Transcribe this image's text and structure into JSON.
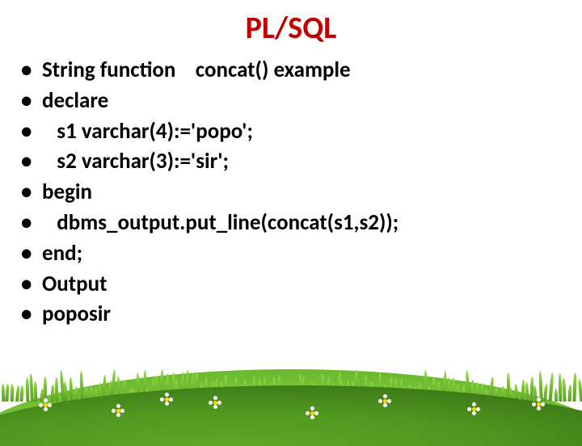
{
  "title": "PL/SQL",
  "bullets": [
    "String function    concat() example",
    "declare",
    "   s1 varchar(4):='popo';",
    "   s2 varchar(3):='sir';",
    "begin",
    "   dbms_output.put_line(concat(s1,s2));",
    "end;",
    "Output",
    "poposir"
  ],
  "colors": {
    "title": "#c00000",
    "text": "#000000",
    "grass_light": "#8fd843",
    "grass_dark": "#3f7d18"
  }
}
